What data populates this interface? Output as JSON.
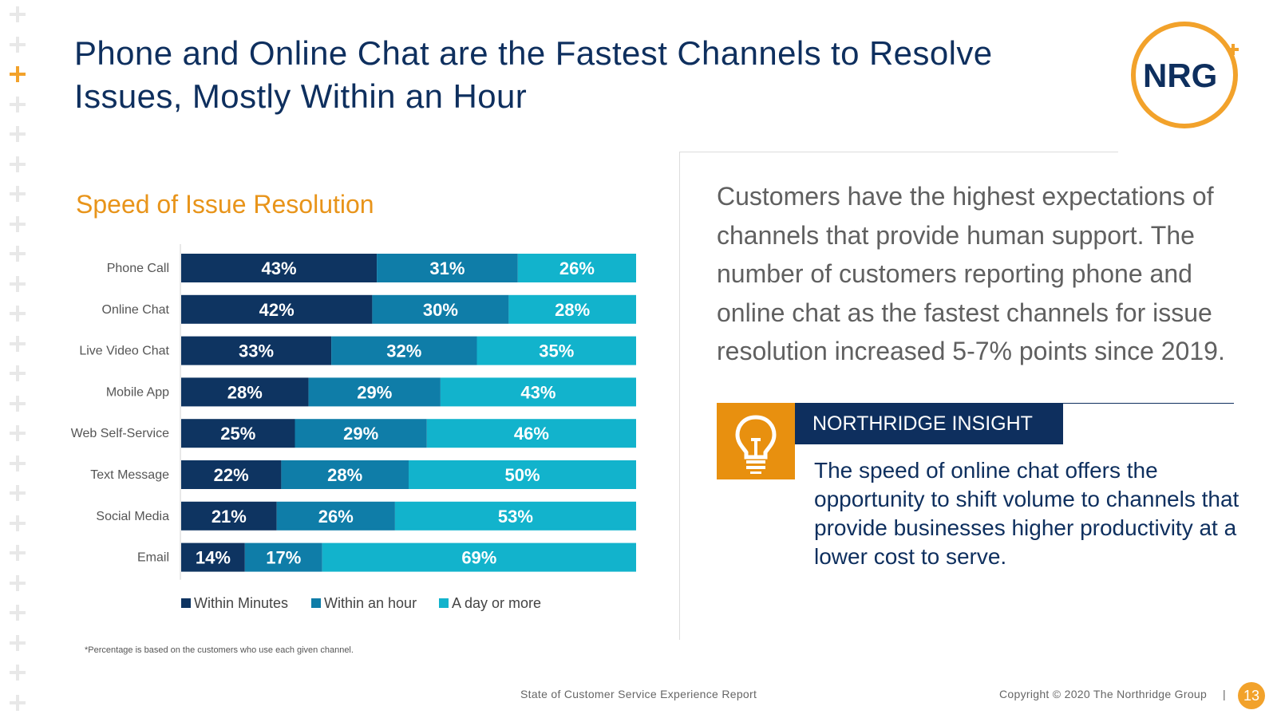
{
  "title": "Phone and Online Chat are the Fastest Channels to Resolve Issues, Mostly Within an Hour",
  "logo_text": "NRG",
  "chart_title": "Speed of Issue Resolution",
  "chart_data": {
    "type": "bar",
    "orientation": "horizontal",
    "stacked": true,
    "title": "Speed of Issue Resolution",
    "categories": [
      "Phone Call",
      "Online Chat",
      "Live Video Chat",
      "Mobile App",
      "Web Self-Service",
      "Text Message",
      "Social Media",
      "Email"
    ],
    "series": [
      {
        "name": "Within Minutes",
        "color": "#0e3461",
        "values": [
          43,
          42,
          33,
          28,
          25,
          22,
          21,
          14
        ]
      },
      {
        "name": "Within an hour",
        "color": "#0f7da8",
        "values": [
          31,
          30,
          32,
          29,
          29,
          28,
          26,
          17
        ]
      },
      {
        "name": "A day or more",
        "color": "#12b3cc",
        "values": [
          26,
          28,
          35,
          43,
          46,
          50,
          53,
          69
        ]
      }
    ],
    "value_suffix": "%",
    "xlim": [
      0,
      100
    ],
    "legend": "bottom",
    "grid": false
  },
  "footnote": "*Percentage is based on the customers who use each given channel.",
  "body_text": "Customers have the highest expectations of channels that provide human support. The number of customers reporting phone and online chat as the fastest channels for issue resolution increased 5-7% points since 2019.",
  "insight": {
    "label": "NORTHRIDGE INSIGHT",
    "text": "The speed of online chat offers the opportunity to shift volume to channels that provide businesses higher productivity at a lower cost to serve.",
    "icon": "lightbulb-icon"
  },
  "footer": {
    "center": "State of Customer Service Experience Report",
    "copyright": "Copyright © 2020 The Northridge Group",
    "separator": "|",
    "page": "13"
  },
  "colors": {
    "navy": "#0e2f5e",
    "orange": "#f2a22b",
    "teal": "#2ea6c9"
  }
}
